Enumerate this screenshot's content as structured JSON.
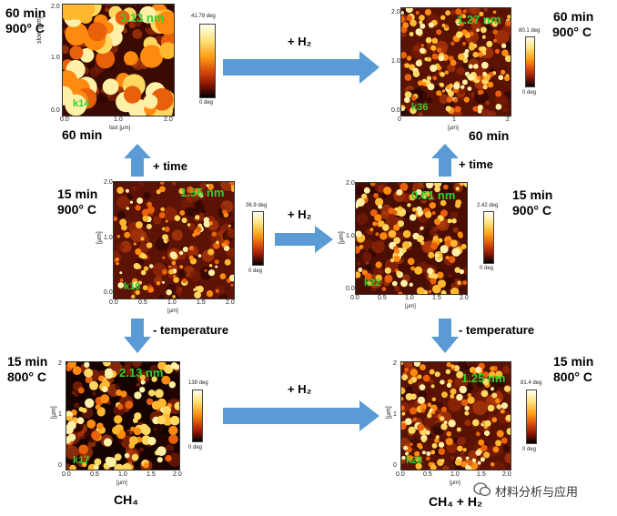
{
  "panels": {
    "k14": {
      "time": "60 min",
      "temp": "900° C",
      "height": "3.13 nm",
      "id": "k14",
      "cbar_max": "41.79 deg",
      "cbar_min": "0 deg",
      "axis_y": "slow [µm]",
      "axis_x": "fast [µm]"
    },
    "k36": {
      "time": "60 min",
      "temp": "900° C",
      "height": "1.27 nm",
      "id": "k36",
      "cbar_max": "80.1 deg",
      "cbar_min": "0 deg",
      "axis_x": "[µm]"
    },
    "k16": {
      "time": "15 min",
      "temp": "900° C",
      "height": "1.55 nm",
      "id": "k16",
      "cbar_max": "36.9 deg",
      "cbar_min": "0 deg",
      "axis_x": "[µm]",
      "axis_y": "[µm]"
    },
    "k22": {
      "time": "15 min",
      "temp": "900° C",
      "height": "0.61 nm",
      "id": "k22",
      "cbar_max": "2.42 deg",
      "cbar_min": "0 deg",
      "axis_x": "[µm]",
      "axis_y": "[µm]"
    },
    "k17": {
      "time": "15 min",
      "temp": "800° C",
      "height": "2.13 nm",
      "id": "k17",
      "cbar_max": "139 deg",
      "cbar_min": "0 deg",
      "axis_x": "[µm]",
      "axis_y": "[µm]",
      "gas": "CH₄"
    },
    "k28": {
      "time": "15 min",
      "temp": "800° C",
      "height": "1.25 nm",
      "id": "k28",
      "cbar_max": "81.4 deg",
      "cbar_min": "0 deg",
      "axis_x": "[µm]",
      "axis_y": "[µm]",
      "gas": "CH₄ + H₂"
    }
  },
  "arrows": {
    "h2_top": "+ H₂",
    "h2_middle": "+ H₂",
    "h2_bottom": "+ H₂",
    "time_left": "+ time",
    "time_right": "+ time",
    "temp_left": "- temperature",
    "temp_right": "- temperature"
  },
  "ticks": {
    "x": [
      "0.0",
      "0.5",
      "1.0",
      "1.5",
      "2.0"
    ],
    "y": [
      "0.0",
      "0.5",
      "1.0",
      "1.5",
      "2.0"
    ],
    "x_int": [
      "0",
      "1",
      "2"
    ],
    "y_int": [
      "0",
      "1",
      "2"
    ]
  },
  "watermark": "材料分析与应用",
  "colors": {
    "arrow": "#5b9bd5",
    "label_green": "#2fd12f"
  }
}
